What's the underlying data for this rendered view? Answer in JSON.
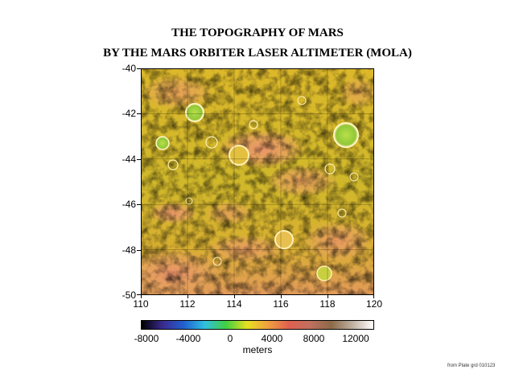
{
  "header": {
    "title_line1": "THE TOPOGRAPHY OF MARS",
    "title_line2": "BY THE MARS ORBITER LASER ALTIMETER (MOLA)"
  },
  "map": {
    "y_ticks": [
      "-40",
      "-42",
      "-44",
      "-46",
      "-48",
      "-50"
    ],
    "x_ticks": [
      "110",
      "112",
      "114",
      "116",
      "118",
      "120"
    ],
    "lat_range": [
      -50,
      -40
    ],
    "lon_range": [
      110,
      120
    ],
    "grid": true,
    "terrain_colors": [
      "#e0b020",
      "#d8b828",
      "#c8b428",
      "#e8a050",
      "#e88870",
      "#a8d040"
    ]
  },
  "colorbar": {
    "tick_labels": [
      "-8000",
      "-4000",
      "0",
      "4000",
      "8000",
      "12000"
    ],
    "label": "meters",
    "range": [
      -8000,
      14000
    ],
    "colors": [
      "#000000",
      "#3a2a90",
      "#2060d0",
      "#30c0e0",
      "#40d040",
      "#e8e020",
      "#f0a040",
      "#e06050",
      "#c07060",
      "#8b6a48",
      "#c0b0a0",
      "#ffffff"
    ]
  },
  "footer": {
    "credit": "from Plate grd 010123"
  }
}
